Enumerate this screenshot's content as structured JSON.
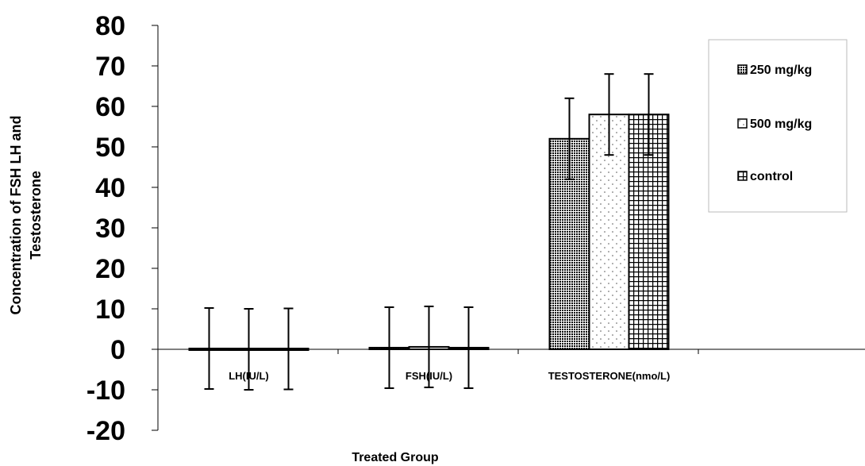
{
  "chart_data": {
    "type": "bar",
    "categories": [
      "LH(IU/L)",
      "FSH(IU/L)",
      "TESTOSTERONE(nmo/L)"
    ],
    "series": [
      {
        "name": "250 mg/kg",
        "values": [
          0.2,
          0.4,
          52
        ],
        "errors": [
          10,
          10,
          10
        ]
      },
      {
        "name": "500 mg/kg",
        "values": [
          0,
          0.6,
          58
        ],
        "errors": [
          10,
          10,
          10
        ]
      },
      {
        "name": "control",
        "values": [
          0.1,
          0.4,
          58
        ],
        "errors": [
          10,
          10,
          10
        ]
      }
    ],
    "xlabel": "Treated Group",
    "ylabel_lines": [
      "Concentration of FSH LH and",
      "Testosterone"
    ],
    "ylim": [
      -20,
      80
    ],
    "yticks": [
      80,
      70,
      60,
      50,
      40,
      30,
      20,
      10,
      0,
      -10,
      -20
    ],
    "legend_position": "top-right",
    "grid": false
  }
}
